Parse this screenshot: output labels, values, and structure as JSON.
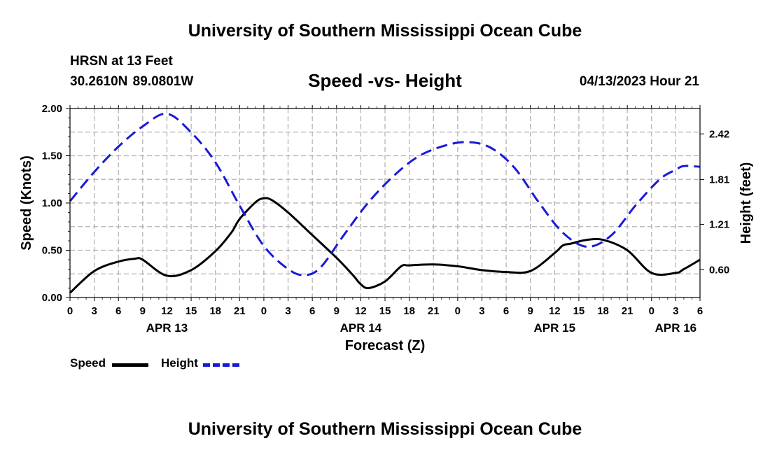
{
  "header": {
    "main_title": "University of Southern Mississippi Ocean Cube",
    "station": "HRSN at 13 Feet",
    "coords": "30.2610N  89.0801W",
    "datetime": "04/13/2023 Hour 21",
    "footer_title": "University of Southern Mississippi Ocean Cube"
  },
  "legend": {
    "speed_label": "Speed",
    "height_label": "Height"
  },
  "colors": {
    "speed": "#000000",
    "height": "#1a1ad6",
    "grid": "#b4b4b4"
  },
  "chart_data": {
    "type": "line",
    "title": "Speed -vs- Height",
    "xlabel": "Forecast (Z)",
    "ylabel": "Speed (Knots)",
    "y2label": "Height (feet)",
    "x_unit": "hours from Apr 13 00Z",
    "xlim": [
      0,
      78
    ],
    "ylim": [
      0,
      2.0
    ],
    "y_ticks": [
      "0.00",
      "0.50",
      "1.00",
      "1.50",
      "2.00"
    ],
    "y_tick_values": [
      0,
      0.5,
      1.0,
      1.5,
      2.0
    ],
    "y2lim": [
      0.23,
      2.76
    ],
    "y2_ticks": [
      "0.60",
      "1.21",
      "1.81",
      "2.42"
    ],
    "y2_tick_values": [
      0.6,
      1.21,
      1.81,
      2.42
    ],
    "x_tick_labels": [
      "0",
      "3",
      "6",
      "9",
      "12",
      "15",
      "18",
      "21",
      "0",
      "3",
      "6",
      "9",
      "12",
      "15",
      "18",
      "21",
      "0",
      "3",
      "6",
      "9",
      "12",
      "15",
      "18",
      "21",
      "0",
      "3",
      "6"
    ],
    "date_labels": [
      {
        "label": "APR 13",
        "x": 12
      },
      {
        "label": "APR 14",
        "x": 36
      },
      {
        "label": "APR 15",
        "x": 60
      },
      {
        "label": "APR 16",
        "x": 75
      }
    ],
    "grid": true,
    "series": [
      {
        "name": "Speed",
        "axis": "left",
        "style": "solid",
        "x": [
          0,
          3,
          6,
          8,
          9,
          12,
          15,
          18,
          20,
          21,
          23,
          24,
          25,
          27,
          30,
          33,
          35,
          36,
          37,
          39,
          41,
          42,
          45,
          48,
          51,
          54,
          57,
          60,
          61,
          62,
          64,
          66,
          69,
          72,
          75,
          76,
          78
        ],
        "values": [
          0.05,
          0.28,
          0.38,
          0.41,
          0.4,
          0.23,
          0.29,
          0.49,
          0.69,
          0.83,
          1.01,
          1.05,
          1.03,
          0.9,
          0.66,
          0.42,
          0.24,
          0.14,
          0.1,
          0.17,
          0.33,
          0.34,
          0.35,
          0.33,
          0.29,
          0.27,
          0.28,
          0.47,
          0.55,
          0.57,
          0.61,
          0.61,
          0.5,
          0.26,
          0.26,
          0.3,
          0.4
        ]
      },
      {
        "name": "Height",
        "axis": "right",
        "style": "dashed",
        "x": [
          0,
          3,
          6,
          9,
          12,
          15,
          18,
          21,
          24,
          27,
          29,
          31,
          34,
          37,
          40,
          43,
          46,
          49,
          52,
          55,
          58,
          61,
          64,
          67,
          70,
          73,
          75,
          76,
          78
        ],
        "values": [
          1.52,
          1.91,
          2.25,
          2.52,
          2.69,
          2.44,
          2.04,
          1.46,
          0.92,
          0.61,
          0.53,
          0.63,
          1.08,
          1.51,
          1.85,
          2.11,
          2.25,
          2.31,
          2.24,
          1.97,
          1.51,
          1.1,
          0.91,
          1.06,
          1.46,
          1.81,
          1.94,
          1.99,
          1.98
        ]
      }
    ]
  }
}
